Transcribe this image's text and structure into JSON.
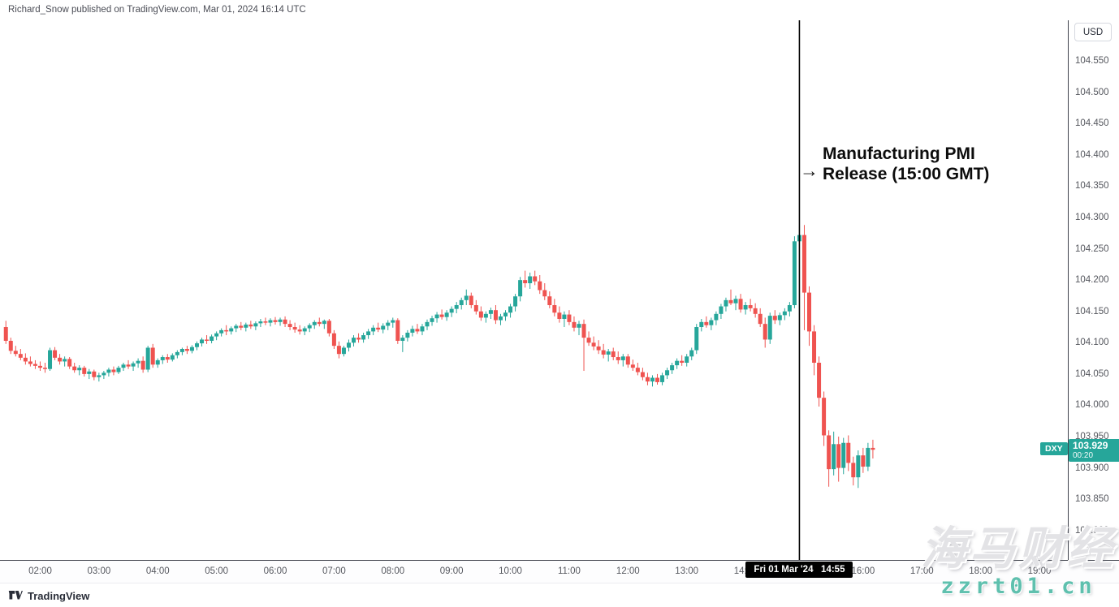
{
  "header": {
    "attribution": "Richard_Snow published on TradingView.com, Mar 01, 2024 16:14 UTC"
  },
  "footer": {
    "brand": "TradingView"
  },
  "watermark": {
    "line1": "海马财经",
    "line2": "zzrt01.cn",
    "accent_color": "#5fc0ae"
  },
  "price_axis": {
    "currency_button": "USD"
  },
  "time_axis": {
    "crosshair_label": "Fri 01 Mar '24   14:55"
  },
  "last_price_label": {
    "symbol": "DXY",
    "price": "103.929",
    "countdown": "00:20",
    "bg_color": "#26a69a"
  },
  "annotation": {
    "arrow_glyph": "→",
    "line1": "Manufacturing PMI",
    "line2": "Release (15:00 GMT)",
    "time": "14:55",
    "line_color": "#000000"
  },
  "chart_data": {
    "type": "candlestick",
    "symbol": "DXY",
    "currency": "USD",
    "interval_minutes": 5,
    "start_time": "01:25",
    "up_color": "#26a69a",
    "down_color": "#ef5350",
    "grid": "off",
    "ylim": [
      103.753,
      104.615
    ],
    "xlim_minutes": [
      79,
      1169
    ],
    "price_ticks": [
      104.55,
      104.5,
      104.45,
      104.4,
      104.35,
      104.3,
      104.25,
      104.2,
      104.15,
      104.1,
      104.05,
      104.0,
      103.95,
      103.9,
      103.85,
      103.8
    ],
    "hour_ticks": [
      "02:00",
      "03:00",
      "04:00",
      "05:00",
      "06:00",
      "07:00",
      "08:00",
      "09:00",
      "10:00",
      "11:00",
      "12:00",
      "13:00",
      "14:00",
      "16:00",
      "17:00",
      "18:00",
      "19:00"
    ],
    "last_price": 103.929,
    "candles": [
      [
        104.125,
        104.135,
        104.098,
        104.103
      ],
      [
        104.103,
        104.108,
        104.082,
        104.087
      ],
      [
        104.087,
        104.095,
        104.078,
        104.082
      ],
      [
        104.082,
        104.09,
        104.072,
        104.076
      ],
      [
        104.076,
        104.083,
        104.065,
        104.07
      ],
      [
        104.07,
        104.078,
        104.062,
        104.066
      ],
      [
        104.066,
        104.072,
        104.058,
        104.063
      ],
      [
        104.063,
        104.07,
        104.055,
        104.06
      ],
      [
        104.06,
        104.068,
        104.052,
        104.058
      ],
      [
        104.058,
        104.092,
        104.055,
        104.088
      ],
      [
        104.088,
        104.093,
        104.072,
        104.076
      ],
      [
        104.076,
        104.082,
        104.065,
        104.07
      ],
      [
        104.07,
        104.078,
        104.062,
        104.074
      ],
      [
        104.074,
        104.077,
        104.058,
        104.062
      ],
      [
        104.062,
        104.068,
        104.052,
        104.056
      ],
      [
        104.056,
        104.064,
        104.048,
        104.06
      ],
      [
        104.06,
        104.063,
        104.046,
        104.05
      ],
      [
        104.05,
        104.058,
        104.042,
        104.054
      ],
      [
        104.054,
        104.057,
        104.04,
        104.045
      ],
      [
        104.045,
        104.052,
        104.038,
        104.048
      ],
      [
        104.048,
        104.055,
        104.042,
        104.052
      ],
      [
        104.052,
        104.06,
        104.046,
        104.057
      ],
      [
        104.057,
        104.062,
        104.048,
        104.053
      ],
      [
        104.053,
        104.063,
        104.05,
        104.06
      ],
      [
        104.06,
        104.068,
        104.055,
        104.065
      ],
      [
        104.065,
        104.072,
        104.058,
        104.062
      ],
      [
        104.062,
        104.07,
        104.055,
        104.067
      ],
      [
        104.067,
        104.075,
        104.06,
        104.071
      ],
      [
        104.071,
        104.078,
        104.052,
        104.057
      ],
      [
        104.057,
        104.095,
        104.053,
        104.092
      ],
      [
        104.092,
        104.098,
        104.06,
        104.065
      ],
      [
        104.065,
        104.075,
        104.06,
        104.072
      ],
      [
        104.072,
        104.08,
        104.066,
        104.077
      ],
      [
        104.077,
        104.082,
        104.068,
        104.073
      ],
      [
        104.073,
        104.083,
        104.07,
        104.08
      ],
      [
        104.08,
        104.088,
        104.075,
        104.085
      ],
      [
        104.085,
        104.092,
        104.08,
        104.09
      ],
      [
        104.09,
        104.095,
        104.082,
        104.087
      ],
      [
        104.087,
        104.096,
        104.083,
        104.093
      ],
      [
        104.093,
        104.102,
        104.088,
        104.099
      ],
      [
        104.099,
        104.108,
        104.094,
        104.105
      ],
      [
        104.105,
        104.112,
        104.098,
        104.103
      ],
      [
        104.103,
        104.113,
        104.099,
        104.11
      ],
      [
        104.11,
        104.118,
        104.104,
        104.115
      ],
      [
        104.115,
        104.123,
        104.11,
        104.12
      ],
      [
        104.12,
        104.128,
        104.112,
        104.118
      ],
      [
        104.118,
        104.126,
        104.113,
        104.123
      ],
      [
        104.123,
        104.13,
        104.117,
        104.127
      ],
      [
        104.127,
        104.133,
        104.12,
        104.124
      ],
      [
        104.124,
        104.132,
        104.118,
        104.129
      ],
      [
        104.129,
        104.135,
        104.122,
        104.126
      ],
      [
        104.126,
        104.134,
        104.12,
        104.131
      ],
      [
        104.131,
        104.138,
        104.125,
        104.134
      ],
      [
        104.134,
        104.14,
        104.128,
        104.132
      ],
      [
        104.132,
        104.139,
        104.126,
        104.136
      ],
      [
        104.136,
        104.141,
        104.129,
        104.133
      ],
      [
        104.133,
        104.14,
        104.127,
        104.137
      ],
      [
        104.137,
        104.142,
        104.125,
        104.13
      ],
      [
        104.13,
        104.136,
        104.12,
        104.125
      ],
      [
        104.125,
        104.132,
        104.116,
        104.121
      ],
      [
        104.121,
        104.128,
        104.113,
        104.118
      ],
      [
        104.118,
        104.126,
        104.112,
        104.123
      ],
      [
        104.123,
        104.131,
        104.117,
        104.128
      ],
      [
        104.128,
        104.136,
        104.122,
        104.133
      ],
      [
        104.133,
        104.14,
        104.126,
        104.13
      ],
      [
        104.13,
        104.137,
        104.122,
        104.135
      ],
      [
        104.135,
        104.138,
        104.11,
        104.115
      ],
      [
        104.115,
        104.12,
        104.09,
        104.095
      ],
      [
        104.095,
        104.102,
        104.075,
        104.082
      ],
      [
        104.082,
        104.095,
        104.078,
        104.092
      ],
      [
        104.092,
        104.105,
        104.086,
        104.1
      ],
      [
        104.1,
        104.112,
        104.094,
        104.108
      ],
      [
        104.108,
        104.115,
        104.1,
        104.105
      ],
      [
        104.105,
        104.116,
        104.1,
        104.112
      ],
      [
        104.112,
        104.122,
        104.106,
        104.118
      ],
      [
        104.118,
        104.128,
        104.112,
        104.124
      ],
      [
        104.124,
        104.132,
        104.117,
        104.121
      ],
      [
        104.121,
        104.131,
        104.115,
        104.127
      ],
      [
        104.127,
        104.136,
        104.12,
        104.132
      ],
      [
        104.132,
        104.14,
        104.124,
        104.136
      ],
      [
        104.136,
        104.139,
        104.098,
        104.103
      ],
      [
        104.103,
        104.112,
        104.085,
        104.108
      ],
      [
        104.108,
        104.12,
        104.102,
        104.116
      ],
      [
        104.116,
        104.127,
        104.11,
        104.122
      ],
      [
        104.122,
        104.13,
        104.114,
        104.118
      ],
      [
        104.118,
        104.13,
        104.112,
        104.126
      ],
      [
        104.126,
        104.137,
        104.12,
        104.133
      ],
      [
        104.133,
        104.143,
        104.127,
        104.139
      ],
      [
        104.139,
        104.149,
        104.132,
        104.145
      ],
      [
        104.145,
        104.153,
        104.137,
        104.141
      ],
      [
        104.141,
        104.152,
        104.135,
        104.148
      ],
      [
        104.148,
        104.158,
        104.141,
        104.154
      ],
      [
        104.154,
        104.165,
        104.147,
        104.16
      ],
      [
        104.16,
        104.172,
        104.153,
        104.168
      ],
      [
        104.168,
        104.185,
        104.16,
        104.175
      ],
      [
        104.175,
        104.18,
        104.155,
        104.16
      ],
      [
        104.16,
        104.168,
        104.145,
        104.15
      ],
      [
        104.15,
        104.158,
        104.135,
        104.14
      ],
      [
        104.14,
        104.15,
        104.132,
        104.146
      ],
      [
        104.146,
        104.156,
        104.138,
        104.152
      ],
      [
        104.152,
        104.16,
        104.13,
        104.136
      ],
      [
        104.136,
        104.146,
        104.128,
        104.142
      ],
      [
        104.142,
        104.152,
        104.135,
        104.148
      ],
      [
        104.148,
        104.162,
        104.14,
        104.158
      ],
      [
        104.158,
        104.178,
        104.15,
        104.174
      ],
      [
        104.174,
        104.205,
        104.166,
        104.2
      ],
      [
        104.2,
        104.215,
        104.188,
        104.195
      ],
      [
        104.195,
        104.212,
        104.186,
        104.206
      ],
      [
        104.206,
        104.215,
        104.192,
        104.198
      ],
      [
        104.198,
        104.208,
        104.178,
        104.184
      ],
      [
        104.184,
        104.195,
        104.168,
        104.174
      ],
      [
        104.174,
        104.182,
        104.155,
        104.16
      ],
      [
        104.16,
        104.17,
        104.142,
        104.148
      ],
      [
        104.148,
        104.158,
        104.132,
        104.138
      ],
      [
        104.138,
        104.15,
        104.125,
        104.145
      ],
      [
        104.145,
        104.152,
        104.128,
        104.133
      ],
      [
        104.133,
        104.142,
        104.118,
        104.124
      ],
      [
        104.124,
        104.135,
        104.112,
        104.13
      ],
      [
        104.13,
        104.137,
        104.055,
        104.108
      ],
      [
        104.108,
        104.118,
        104.095,
        104.1
      ],
      [
        104.1,
        104.11,
        104.088,
        104.094
      ],
      [
        104.094,
        104.104,
        104.082,
        104.088
      ],
      [
        104.088,
        104.098,
        104.075,
        104.081
      ],
      [
        104.081,
        104.09,
        104.07,
        104.086
      ],
      [
        104.086,
        104.092,
        104.072,
        104.077
      ],
      [
        104.077,
        104.086,
        104.066,
        104.072
      ],
      [
        104.072,
        104.082,
        104.062,
        104.078
      ],
      [
        104.078,
        104.082,
        104.06,
        104.065
      ],
      [
        104.065,
        104.073,
        104.055,
        104.06
      ],
      [
        104.06,
        104.068,
        104.048,
        104.053
      ],
      [
        104.053,
        104.06,
        104.04,
        104.045
      ],
      [
        104.045,
        104.052,
        104.032,
        104.038
      ],
      [
        104.038,
        104.048,
        104.03,
        104.044
      ],
      [
        104.044,
        104.05,
        104.033,
        104.037
      ],
      [
        104.037,
        104.052,
        104.032,
        104.048
      ],
      [
        104.048,
        104.06,
        104.042,
        104.056
      ],
      [
        104.056,
        104.068,
        104.05,
        104.064
      ],
      [
        104.064,
        104.075,
        104.058,
        104.071
      ],
      [
        104.071,
        104.08,
        104.063,
        104.068
      ],
      [
        104.068,
        104.082,
        104.062,
        104.078
      ],
      [
        104.078,
        104.092,
        104.072,
        104.088
      ],
      [
        104.088,
        104.13,
        104.082,
        104.125
      ],
      [
        104.125,
        104.138,
        104.118,
        104.133
      ],
      [
        104.133,
        104.142,
        104.124,
        104.128
      ],
      [
        104.128,
        104.14,
        104.12,
        104.136
      ],
      [
        104.136,
        104.15,
        104.128,
        104.146
      ],
      [
        104.146,
        104.162,
        104.138,
        104.158
      ],
      [
        104.158,
        104.172,
        104.15,
        104.168
      ],
      [
        104.168,
        104.185,
        104.16,
        104.163
      ],
      [
        104.163,
        104.175,
        104.152,
        104.17
      ],
      [
        104.17,
        104.178,
        104.148,
        104.153
      ],
      [
        104.153,
        104.165,
        104.145,
        104.16
      ],
      [
        104.16,
        104.17,
        104.15,
        104.155
      ],
      [
        104.155,
        104.163,
        104.14,
        104.146
      ],
      [
        104.146,
        104.155,
        104.125,
        104.13
      ],
      [
        104.13,
        104.14,
        104.092,
        104.105
      ],
      [
        104.105,
        104.148,
        104.098,
        104.143
      ],
      [
        104.143,
        104.152,
        104.13,
        104.136
      ],
      [
        104.136,
        104.148,
        104.128,
        104.144
      ],
      [
        104.144,
        104.155,
        104.136,
        104.15
      ],
      [
        104.15,
        104.165,
        104.142,
        104.16
      ],
      [
        104.16,
        104.27,
        104.155,
        104.262
      ],
      [
        104.262,
        104.285,
        104.255,
        104.272
      ],
      [
        104.272,
        104.288,
        104.12,
        104.18
      ],
      [
        104.18,
        104.19,
        104.095,
        104.118
      ],
      [
        104.118,
        104.128,
        104.048,
        104.068
      ],
      [
        104.068,
        104.078,
        103.998,
        104.012
      ],
      [
        104.012,
        104.022,
        103.935,
        103.952
      ],
      [
        103.952,
        103.96,
        103.87,
        103.898
      ],
      [
        103.898,
        103.958,
        103.888,
        103.938
      ],
      [
        103.938,
        103.95,
        103.878,
        103.9
      ],
      [
        103.9,
        103.948,
        103.89,
        103.94
      ],
      [
        103.94,
        103.952,
        103.895,
        103.908
      ],
      [
        103.908,
        103.918,
        103.872,
        103.885
      ],
      [
        103.885,
        103.928,
        103.868,
        103.92
      ],
      [
        103.92,
        103.932,
        103.892,
        103.902
      ],
      [
        103.902,
        103.94,
        103.895,
        103.932
      ],
      [
        103.932,
        103.945,
        103.915,
        103.929
      ]
    ],
    "title": "",
    "xlabel": "",
    "ylabel": "USD"
  }
}
